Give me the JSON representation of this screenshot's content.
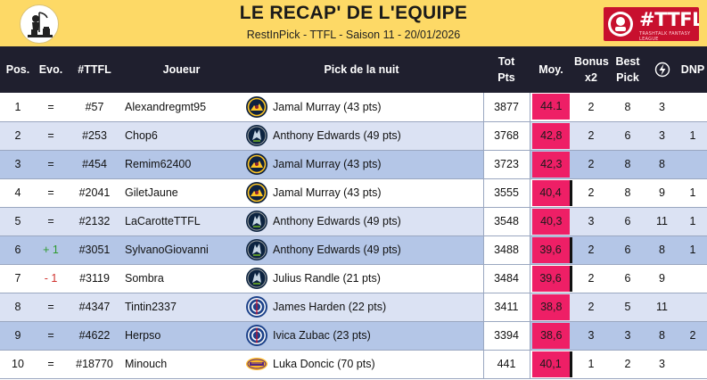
{
  "header": {
    "title": "LE RECAP' DE L'EQUIPE",
    "subtitle": "RestInPick - TTFL - Saison 11 - 20/01/2026",
    "brand": "#TTFL",
    "brand_tagline": "TRASHTALK FANTASY LEAGUE"
  },
  "colors": {
    "header_bg": "#fdd966",
    "table_header_bg": "#1f1f2e",
    "avg_highlight": "#ee1f66",
    "row_light": "#dbe2f3",
    "row_mid": "#b4c6e7",
    "evo_up": "#2e9a2e",
    "evo_down": "#d0312d"
  },
  "columns": {
    "pos": "Pos.",
    "evo": "Evo.",
    "ttfl": "#TTFL",
    "player": "Joueur",
    "pick": "Pick de la nuit",
    "total_l1": "Tot",
    "total_l2": "Pts",
    "avg": "Moy.",
    "bonus_l1": "Bonus",
    "bonus_l2": "x2",
    "best_l1": "Best",
    "best_l2": "Pick",
    "streak_icon": "lightning-bolt-icon",
    "dnp": "DNP"
  },
  "rows": [
    {
      "pos": "1",
      "evo": "=",
      "ttfl": "#57",
      "player": "Alexandregmt95",
      "team": "nuggets",
      "pick": "Jamal Murray (43 pts)",
      "total": "3877",
      "avg": "44.1",
      "bonus": "2",
      "best": "8",
      "streak": "3",
      "dnp": "",
      "style": "r-white",
      "avg_bar": false
    },
    {
      "pos": "2",
      "evo": "=",
      "ttfl": "#253",
      "player": "Chop6",
      "team": "timberwolves",
      "pick": "Anthony Edwards (49 pts)",
      "total": "3768",
      "avg": "42,8",
      "bonus": "2",
      "best": "6",
      "streak": "3",
      "dnp": "1",
      "style": "r-light",
      "avg_bar": false
    },
    {
      "pos": "3",
      "evo": "=",
      "ttfl": "#454",
      "player": "Remim62400",
      "team": "nuggets",
      "pick": "Jamal Murray (43 pts)",
      "total": "3723",
      "avg": "42,3",
      "bonus": "2",
      "best": "8",
      "streak": "8",
      "dnp": "",
      "style": "r-mid",
      "avg_bar": false
    },
    {
      "pos": "4",
      "evo": "=",
      "ttfl": "#2041",
      "player": "GiletJaune",
      "team": "nuggets",
      "pick": "Jamal Murray (43 pts)",
      "total": "3555",
      "avg": "40,4",
      "bonus": "2",
      "best": "8",
      "streak": "9",
      "dnp": "1",
      "style": "r-white",
      "avg_bar": true
    },
    {
      "pos": "5",
      "evo": "=",
      "ttfl": "#2132",
      "player": "LaCarotteTTFL",
      "team": "timberwolves",
      "pick": "Anthony Edwards (49 pts)",
      "total": "3548",
      "avg": "40,3",
      "bonus": "3",
      "best": "6",
      "streak": "11",
      "dnp": "1",
      "style": "r-light",
      "avg_bar": false
    },
    {
      "pos": "6",
      "evo": "+ 1",
      "ttfl": "#3051",
      "player": "SylvanoGiovanni",
      "team": "timberwolves",
      "pick": "Anthony Edwards (49 pts)",
      "total": "3488",
      "avg": "39,6",
      "bonus": "2",
      "best": "6",
      "streak": "8",
      "dnp": "1",
      "style": "r-mid",
      "avg_bar": true
    },
    {
      "pos": "7",
      "evo": "- 1",
      "ttfl": "#3119",
      "player": "Sombra",
      "team": "timberwolves",
      "pick": "Julius Randle (21 pts)",
      "total": "3484",
      "avg": "39,6",
      "bonus": "2",
      "best": "6",
      "streak": "9",
      "dnp": "",
      "style": "r-white",
      "avg_bar": true
    },
    {
      "pos": "8",
      "evo": "=",
      "ttfl": "#4347",
      "player": "Tintin2337",
      "team": "clippers",
      "pick": "James Harden (22 pts)",
      "total": "3411",
      "avg": "38,8",
      "bonus": "2",
      "best": "5",
      "streak": "11",
      "dnp": "",
      "style": "r-light",
      "avg_bar": false
    },
    {
      "pos": "9",
      "evo": "=",
      "ttfl": "#4622",
      "player": "Herpso",
      "team": "clippers",
      "pick": "Ivica Zubac (23 pts)",
      "total": "3394",
      "avg": "38,6",
      "bonus": "3",
      "best": "3",
      "streak": "8",
      "dnp": "2",
      "style": "r-mid",
      "avg_bar": false
    },
    {
      "pos": "10",
      "evo": "=",
      "ttfl": "#18770",
      "player": "Minouch",
      "team": "lakers",
      "pick": "Luka Doncic (70 pts)",
      "total": "441",
      "avg": "40,1",
      "bonus": "1",
      "best": "2",
      "streak": "3",
      "dnp": "",
      "style": "r-white",
      "avg_bar": true
    }
  ]
}
